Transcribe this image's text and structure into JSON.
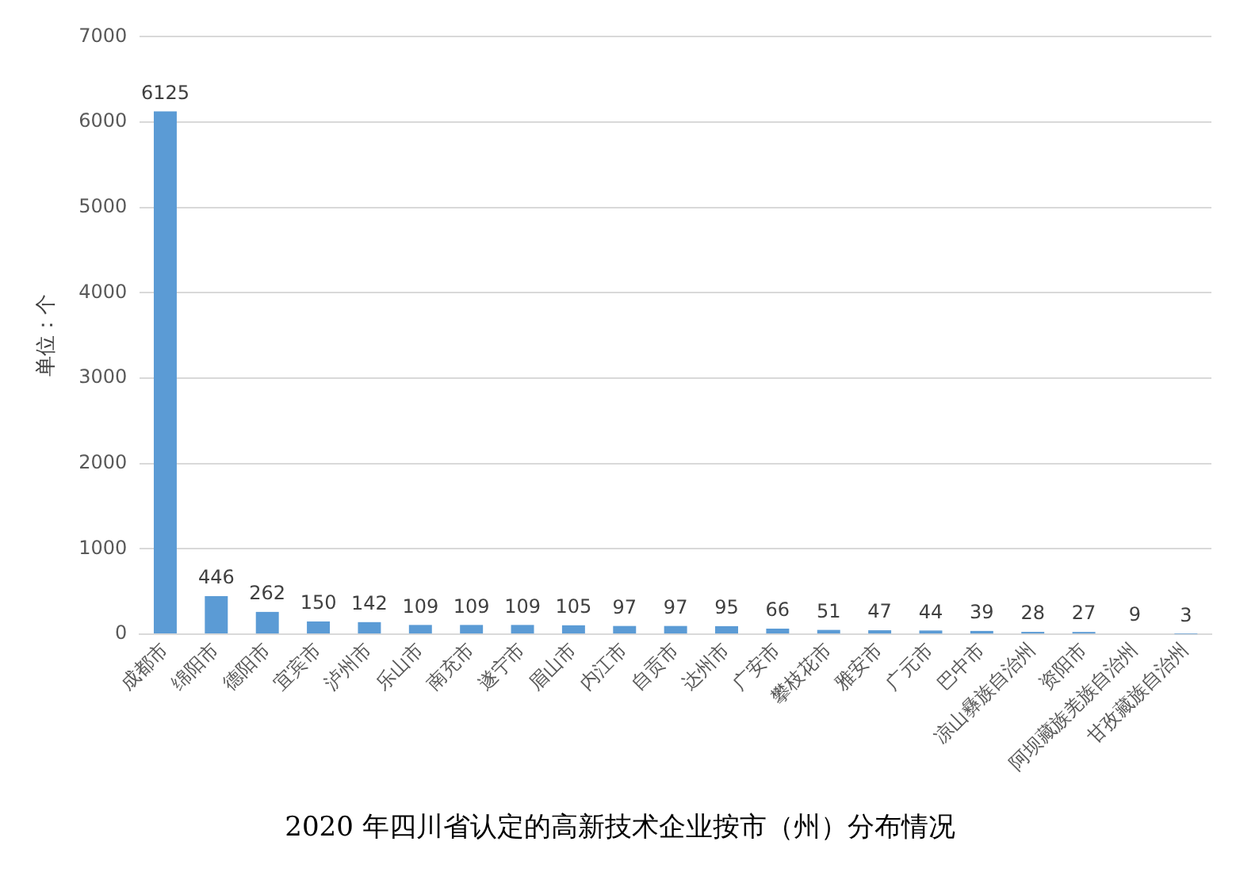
{
  "chart_data": {
    "type": "bar",
    "title": "2020 年四川省认定的高新技术企业按市（州）分布情况",
    "ylabel": "单位：个",
    "categories": [
      "成都市",
      "绵阳市",
      "德阳市",
      "宜宾市",
      "泸州市",
      "乐山市",
      "南充市",
      "遂宁市",
      "眉山市",
      "内江市",
      "自贡市",
      "达州市",
      "广安市",
      "攀枝花市",
      "雅安市",
      "广元市",
      "巴中市",
      "凉山彝族自治州",
      "资阳市",
      "阿坝藏族羌族自治州",
      "甘孜藏族自治州"
    ],
    "values": [
      6125,
      446,
      262,
      150,
      142,
      109,
      109,
      109,
      105,
      97,
      97,
      95,
      66,
      51,
      47,
      44,
      39,
      28,
      27,
      9,
      3
    ],
    "color": "#5b9bd5",
    "ylim": [
      0,
      7000
    ],
    "yticks": [
      0,
      1000,
      2000,
      3000,
      4000,
      5000,
      6000,
      7000
    ],
    "grid": "y",
    "data_labels": true
  }
}
